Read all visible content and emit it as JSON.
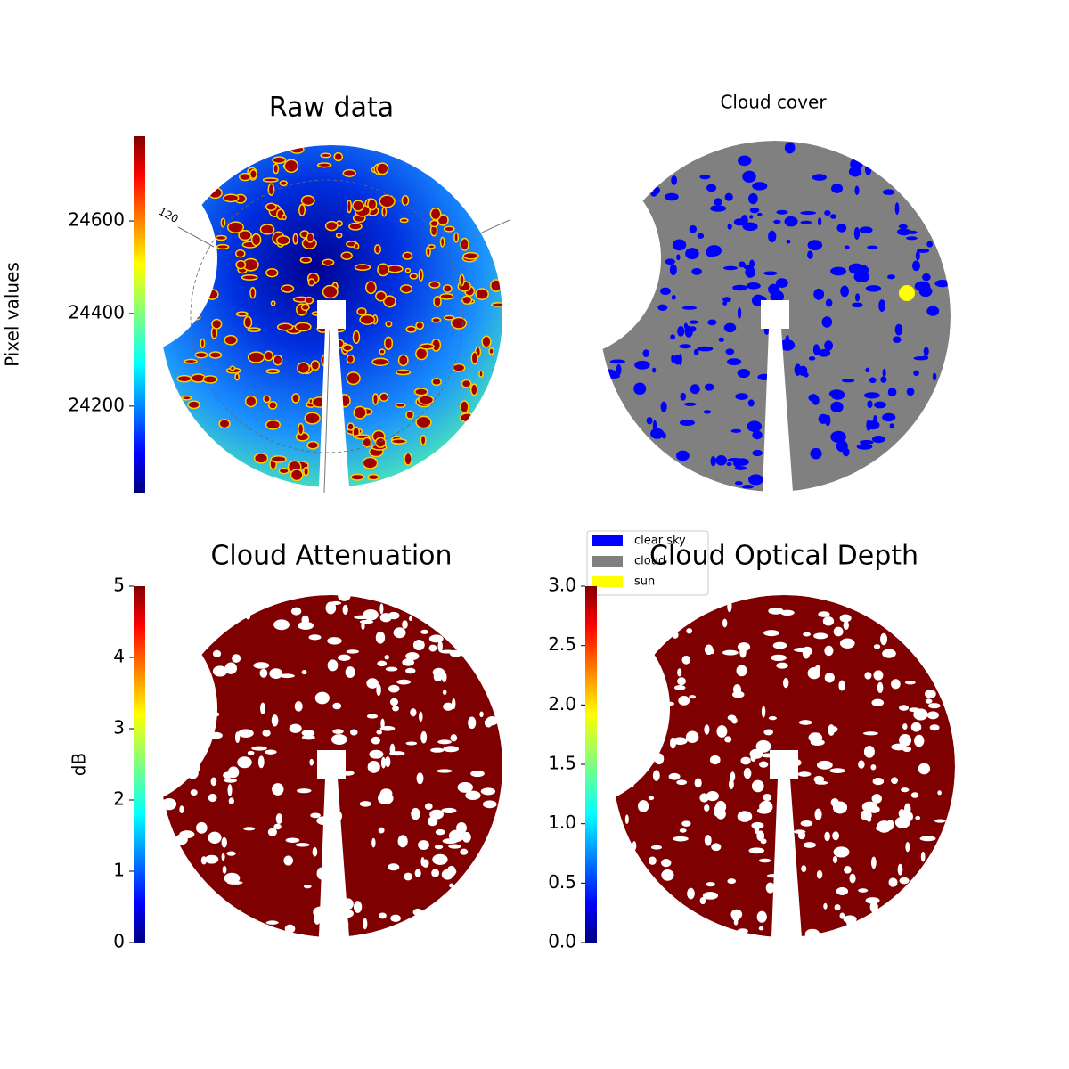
{
  "chart_data": [
    {
      "type": "image",
      "title": "Raw data",
      "colorbar_label": "Pixel values",
      "colormap": "jet",
      "ylim": [
        24013,
        24783
      ],
      "yticks": [
        24200,
        24400,
        24600
      ],
      "annotations": [
        "120"
      ]
    },
    {
      "type": "image",
      "title": "Cloud cover",
      "legend": "lower left",
      "series": [
        {
          "name": "clear sky",
          "color": "#0000ff"
        },
        {
          "name": "cloud",
          "color": "#808080"
        },
        {
          "name": "sun",
          "color": "#ffff00"
        }
      ]
    },
    {
      "type": "image",
      "title": "Cloud Attenuation",
      "colorbar_label": "dB",
      "colormap": "jet",
      "ylim": [
        0,
        5
      ],
      "yticks": [
        0,
        1,
        2,
        3,
        4,
        5
      ]
    },
    {
      "type": "image",
      "title": "Cloud Optical Depth",
      "colormap": "jet",
      "ylim": [
        0,
        3
      ],
      "yticks": [
        {
          "value": 0,
          "label": "0.0"
        },
        0.5,
        {
          "value": 1,
          "label": "1.0"
        },
        1.5,
        {
          "value": 2,
          "label": "2.0"
        },
        2.5,
        {
          "value": 3,
          "label": "3.0"
        }
      ]
    }
  ]
}
